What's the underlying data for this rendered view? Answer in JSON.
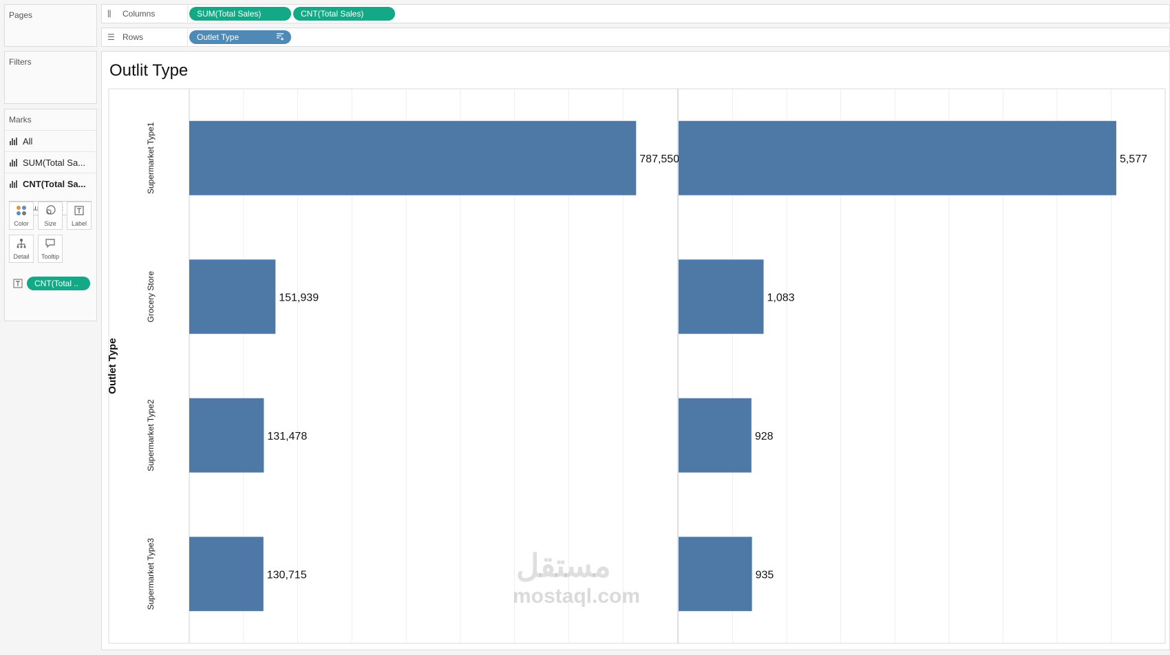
{
  "pages": {
    "title": "Pages"
  },
  "filters": {
    "title": "Filters"
  },
  "marks": {
    "title": "Marks",
    "layers": [
      {
        "label": "All"
      },
      {
        "label": "SUM(Total Sa..."
      },
      {
        "label": "CNT(Total Sa..."
      }
    ],
    "mark_type": "Automatic",
    "cards": [
      {
        "label": "Color",
        "icon": "color-icon"
      },
      {
        "label": "Size",
        "icon": "size-icon"
      },
      {
        "label": "Label",
        "icon": "label-icon"
      },
      {
        "label": "Detail",
        "icon": "detail-icon"
      },
      {
        "label": "Tooltip",
        "icon": "tooltip-icon"
      }
    ],
    "label_pill": "CNT(Total ..",
    "pill_color": "#13a986"
  },
  "shelves": {
    "columns": {
      "label": "Columns",
      "pills": [
        "SUM(Total Sales)",
        "CNT(Total Sales)"
      ]
    },
    "rows": {
      "label": "Rows",
      "pills": [
        "Outlet Type"
      ]
    }
  },
  "sheet": {
    "title": "Outlit Type"
  },
  "chart_data": {
    "type": "bar",
    "orientation": "horizontal",
    "row_header": "Outlet Type",
    "categories": [
      "Supermarket Type1",
      "Grocery Store",
      "Supermarket Type2",
      "Supermarket Type3"
    ],
    "series": [
      {
        "values": [
          787550,
          151939,
          131478,
          130715
        ],
        "labels": [
          "787,550",
          "151,939",
          "131,478",
          "130,715"
        ],
        "xlim": [
          0,
          860000
        ]
      },
      {
        "values": [
          5577,
          1083,
          928,
          935
        ],
        "labels": [
          "5,577",
          "1,083",
          "928",
          "935"
        ],
        "xlim": [
          0,
          6200
        ]
      }
    ],
    "bar_color": "#4e79a7",
    "grid": true
  },
  "watermark": {
    "arabic": "مستقل",
    "latin": "mostaql.com"
  }
}
